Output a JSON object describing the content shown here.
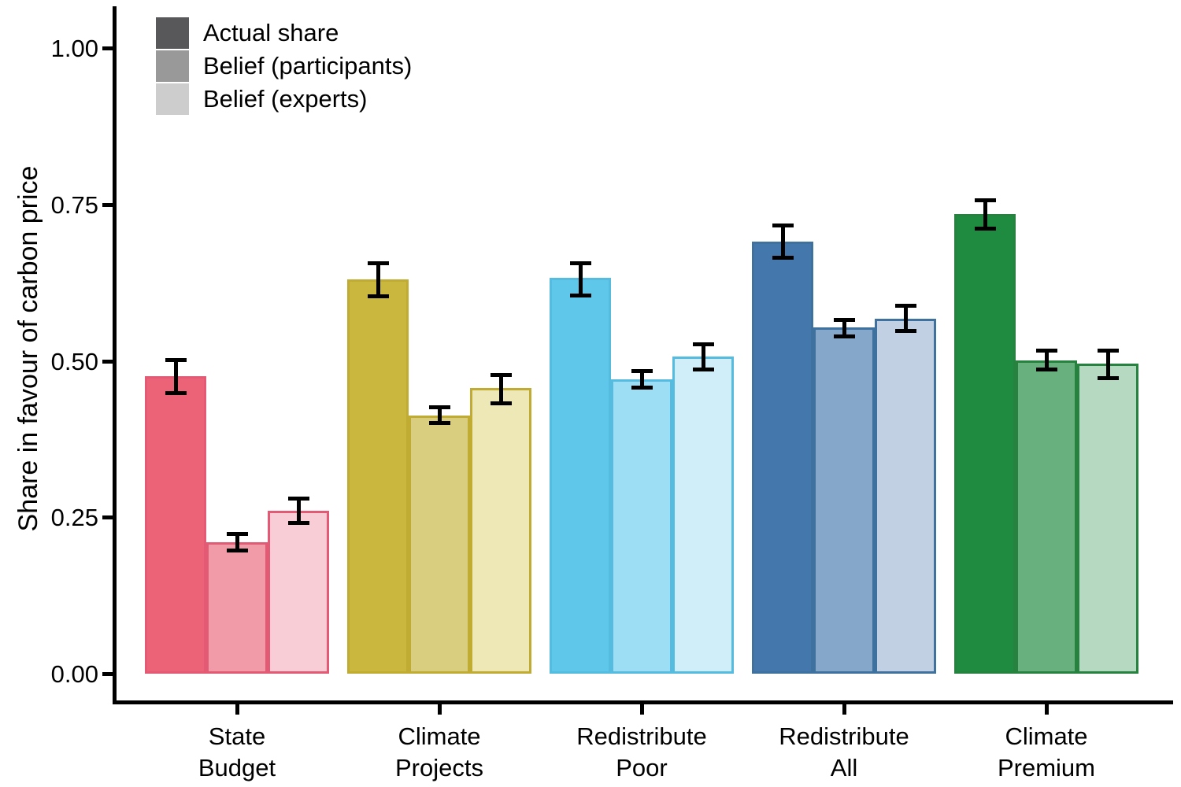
{
  "chart_data": {
    "type": "bar",
    "title": "",
    "xlabel": "",
    "ylabel": "Share in favour of carbon price",
    "ylim": [
      0,
      1.05
    ],
    "grid": false,
    "error_bars": true,
    "yticks": [
      0,
      0.25,
      0.5,
      0.75,
      1.0
    ],
    "ytick_labels": [
      "0.00",
      "0.25",
      "0.50",
      "0.75",
      "1.00"
    ],
    "categories": [
      "State Budget",
      "Climate Projects",
      "Redistribute Poor",
      "Redistribute All",
      "Climate Premium"
    ],
    "category_label_lines": [
      [
        "State",
        "Budget"
      ],
      [
        "Climate",
        "Projects"
      ],
      [
        "Redistribute",
        "Poor"
      ],
      [
        "Redistribute",
        "All"
      ],
      [
        "Climate",
        "Premium"
      ]
    ],
    "series": [
      {
        "name": "Actual share",
        "values": [
          0.475,
          0.63,
          0.633,
          0.69,
          0.735
        ],
        "ci_low": [
          0.445,
          0.6,
          0.601,
          0.662,
          0.708
        ],
        "ci_high": [
          0.505,
          0.659,
          0.659,
          0.719,
          0.76
        ]
      },
      {
        "name": "Belief (participants)",
        "values": [
          0.21,
          0.413,
          0.47,
          0.553,
          0.501
        ],
        "ci_low": [
          0.194,
          0.397,
          0.454,
          0.536,
          0.483
        ],
        "ci_high": [
          0.226,
          0.429,
          0.487,
          0.569,
          0.52
        ]
      },
      {
        "name": "Belief (experts)",
        "values": [
          0.261,
          0.456,
          0.507,
          0.567,
          0.495
        ],
        "ci_low": [
          0.238,
          0.429,
          0.483,
          0.545,
          0.469
        ],
        "ci_high": [
          0.283,
          0.48,
          0.53,
          0.591,
          0.52
        ]
      }
    ],
    "group_colors": [
      {
        "fills": [
          "#ec6378",
          "#f19ba8",
          "#f9cdd6"
        ],
        "border": "#e25a73"
      },
      {
        "fills": [
          "#c9b83d",
          "#d9cd80",
          "#eee7b6"
        ],
        "border": "#c0ac33"
      },
      {
        "fills": [
          "#5fc8ea",
          "#9edef4",
          "#cfeef9"
        ],
        "border": "#56bcdf"
      },
      {
        "fills": [
          "#4478ac",
          "#84a7ca",
          "#c1d1e3"
        ],
        "border": "#3f719f"
      },
      {
        "fills": [
          "#1f8b40",
          "#68b17f",
          "#b6d9c1"
        ],
        "border": "#27813f"
      }
    ],
    "legend": {
      "position": "top-left",
      "items": [
        {
          "label": "Actual share",
          "color": "#58585a"
        },
        {
          "label": "Belief (participants)",
          "color": "#999999"
        },
        {
          "label": "Belief (experts)",
          "color": "#cdcdcd"
        }
      ]
    }
  }
}
